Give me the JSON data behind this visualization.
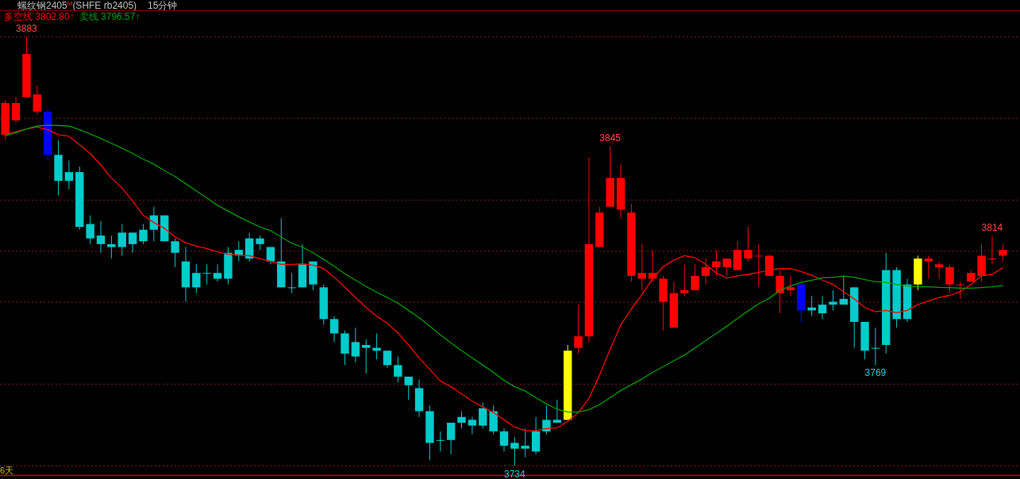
{
  "chart_data": {
    "type": "candlestick",
    "title": "螺纹钢2405$^{M}$(SHFE rb2405)",
    "subtitle": "15分钟",
    "annotations": [
      "6天"
    ],
    "legend": "top left",
    "grid": "y",
    "ylim": [
      3734,
      3883
    ],
    "yticks": [
      {
        "value": 3883,
        "label": null
      },
      {
        "value": 3854.7,
        "label": null
      },
      {
        "value": 3826.3,
        "label": null
      },
      {
        "value": 3808.6,
        "label": null
      },
      {
        "value": 3790.9,
        "label": null
      },
      {
        "value": 3762.4,
        "label": null
      },
      {
        "value": 3734,
        "label": null
      }
    ],
    "categories": [
      null,
      null,
      null,
      null,
      null,
      null,
      null,
      null,
      null,
      null,
      null,
      null,
      null,
      null,
      null,
      null,
      null,
      null,
      null,
      null,
      null,
      null,
      null,
      null,
      null,
      null,
      null,
      null,
      null,
      null,
      null,
      null,
      null,
      null,
      null,
      null,
      null,
      null,
      null,
      null,
      null,
      null,
      null,
      null,
      null,
      null,
      null,
      null,
      null,
      null,
      null,
      null,
      null,
      null,
      null,
      null,
      null,
      null,
      null,
      null,
      null,
      null,
      null,
      null,
      null,
      null,
      null,
      null,
      null,
      null,
      null,
      null,
      null,
      null,
      null,
      null,
      null,
      null,
      null,
      null,
      null,
      null,
      null,
      null,
      null,
      null,
      null,
      null,
      null,
      null,
      null,
      null,
      null,
      null,
      null
    ],
    "ohlc": [
      [
        3849,
        3861,
        3847,
        3860
      ],
      [
        3854,
        3862,
        3853,
        3860
      ],
      [
        3862,
        3883,
        3862,
        3877
      ],
      [
        3857,
        3866,
        3856,
        3863
      ],
      [
        3857,
        3858,
        3840,
        3842
      ],
      [
        3842,
        3847,
        3828,
        3833
      ],
      [
        3836,
        3840,
        3830,
        3833
      ],
      [
        3836,
        3838,
        3816,
        3817
      ],
      [
        3818,
        3821,
        3811,
        3813
      ],
      [
        3814,
        3819,
        3808,
        3811
      ],
      [
        3811,
        3814,
        3806,
        3810
      ],
      [
        3815,
        3818,
        3807,
        3810
      ],
      [
        3815,
        3815,
        3808,
        3811
      ],
      [
        3816,
        3818,
        3811,
        3812
      ],
      [
        3821,
        3824,
        3812,
        3816
      ],
      [
        3821,
        3821,
        3812,
        3812
      ],
      [
        3812,
        3813,
        3803,
        3808
      ],
      [
        3805,
        3810,
        3791,
        3796
      ],
      [
        3801,
        3804,
        3794,
        3796
      ],
      [
        3801,
        3804,
        3797,
        3801
      ],
      [
        3801,
        3804,
        3798,
        3799
      ],
      [
        3808,
        3810,
        3797,
        3799
      ],
      [
        3809,
        3812,
        3805,
        3807
      ],
      [
        3813,
        3815,
        3805,
        3806
      ],
      [
        3813,
        3814,
        3809,
        3811
      ],
      [
        3810,
        3810,
        3804,
        3805
      ],
      [
        3805,
        3820,
        3796,
        3796
      ],
      [
        3796,
        3801,
        3794,
        3796
      ],
      [
        3804,
        3811,
        3796,
        3796
      ],
      [
        3805,
        3805,
        3795,
        3797
      ],
      [
        3796,
        3797,
        3783,
        3785
      ],
      [
        3785,
        3786,
        3777,
        3780
      ],
      [
        3780,
        3781,
        3769,
        3773
      ],
      [
        3777,
        3782,
        3770,
        3772
      ],
      [
        3776,
        3778,
        3766,
        3775
      ],
      [
        3775,
        3780,
        3771,
        3774
      ],
      [
        3774,
        3774,
        3768,
        3769
      ],
      [
        3769,
        3772,
        3763,
        3765
      ],
      [
        3765,
        3765,
        3757,
        3762
      ],
      [
        3761,
        3764,
        3751,
        3753
      ],
      [
        3753,
        3755,
        3736,
        3742
      ],
      [
        3743,
        3746,
        3739,
        3743
      ],
      [
        3749,
        3749,
        3738,
        3743
      ],
      [
        3751,
        3753,
        3747,
        3749
      ],
      [
        3750,
        3751,
        3745,
        3748
      ],
      [
        3754,
        3756,
        3747,
        3748
      ],
      [
        3753,
        3755,
        3745,
        3746
      ],
      [
        3746,
        3747,
        3739,
        3741
      ],
      [
        3742,
        3744,
        3734,
        3740
      ],
      [
        3741,
        3747,
        3737,
        3740
      ],
      [
        3746,
        3751,
        3738,
        3739
      ],
      [
        3750,
        3755,
        3745,
        3746
      ],
      [
        3750,
        3757,
        3749,
        3749
      ],
      [
        3750,
        3776,
        3750,
        3774
      ],
      [
        3775,
        3790,
        3773,
        3779
      ],
      [
        3779,
        3841,
        3777,
        3811
      ],
      [
        3810,
        3824,
        3810,
        3822
      ],
      [
        3824,
        3845,
        3824,
        3834
      ],
      [
        3823,
        3839,
        3820,
        3834
      ],
      [
        3800,
        3825,
        3798,
        3822
      ],
      [
        3799,
        3811,
        3795,
        3801
      ],
      [
        3799,
        3809,
        3798,
        3801
      ],
      [
        3791,
        3800,
        3781,
        3799
      ],
      [
        3782,
        3798,
        3782,
        3794
      ],
      [
        3794,
        3804,
        3793,
        3795
      ],
      [
        3795,
        3804,
        3795,
        3800
      ],
      [
        3800,
        3806,
        3797,
        3803
      ],
      [
        3803,
        3809,
        3800,
        3805
      ],
      [
        3803,
        3806,
        3800,
        3806
      ],
      [
        3802,
        3812,
        3802,
        3809
      ],
      [
        3806,
        3817,
        3805,
        3809
      ],
      [
        3807,
        3811,
        3796,
        3807
      ],
      [
        3800,
        3807,
        3800,
        3807
      ],
      [
        3794,
        3802,
        3787,
        3800
      ],
      [
        3795,
        3800,
        3793,
        3796
      ],
      [
        3797,
        3799,
        3784,
        3788
      ],
      [
        3789,
        3793,
        3786,
        3788
      ],
      [
        3790,
        3793,
        3785,
        3787
      ],
      [
        3791,
        3795,
        3788,
        3790
      ],
      [
        3792,
        3800,
        3790,
        3790
      ],
      [
        3796,
        3796,
        3775,
        3784
      ],
      [
        3784,
        3784,
        3771,
        3774
      ],
      [
        3775,
        3782,
        3769,
        3775
      ],
      [
        3802,
        3808,
        3773,
        3776
      ],
      [
        3802,
        3803,
        3782,
        3785
      ],
      [
        3797,
        3799,
        3784,
        3785
      ],
      [
        3797,
        3807,
        3795,
        3806
      ],
      [
        3805,
        3807,
        3799,
        3806
      ],
      [
        3803,
        3805,
        3799,
        3804
      ],
      [
        3797,
        3804,
        3794,
        3803
      ],
      [
        3797,
        3798,
        3792,
        3797
      ],
      [
        3798,
        3802,
        3798,
        3801
      ],
      [
        3800,
        3811,
        3798,
        3807
      ],
      [
        3806,
        3814,
        3804,
        3806
      ],
      [
        3807,
        3811,
        3805,
        3809
      ]
    ],
    "colors": [
      "#ff0000",
      "#ff0000",
      "#ff0000",
      "#ff0000",
      "#0000ff",
      "#00cccc",
      "#00cccc",
      "#00cccc",
      "#00cccc",
      "#00cccc",
      "#00cccc",
      "#00cccc",
      "#00cccc",
      "#00cccc",
      "#00cccc",
      "#00cccc",
      "#00cccc",
      "#00cccc",
      "#00cccc",
      "#00cccc",
      "#00cccc",
      "#00cccc",
      "#00cccc",
      "#00cccc",
      "#00cccc",
      "#00cccc",
      "#00cccc",
      "#00cccc",
      "#00cccc",
      "#00cccc",
      "#00cccc",
      "#00cccc",
      "#00cccc",
      "#00cccc",
      "#00cccc",
      "#00cccc",
      "#00cccc",
      "#00cccc",
      "#00cccc",
      "#00cccc",
      "#00cccc",
      "#00cccc",
      "#00cccc",
      "#00cccc",
      "#00cccc",
      "#00cccc",
      "#00cccc",
      "#00cccc",
      "#00cccc",
      "#00cccc",
      "#00cccc",
      "#00cccc",
      "#00cccc",
      "#ffff00",
      "#ff0000",
      "#ff0000",
      "#ff0000",
      "#ff0000",
      "#ff0000",
      "#ff0000",
      "#ff0000",
      "#ff0000",
      "#ff0000",
      "#ff0000",
      "#ff0000",
      "#ff0000",
      "#ff0000",
      "#ff0000",
      "#ff0000",
      "#ff0000",
      "#ff0000",
      "#ff0000",
      "#ff0000",
      "#ff0000",
      "#ff0000",
      "#0000ff",
      "#00cccc",
      "#00cccc",
      "#00cccc",
      "#00cccc",
      "#00cccc",
      "#00cccc",
      "#00cccc",
      "#00cccc",
      "#00cccc",
      "#00cccc",
      "#ffff00",
      "#ff0000",
      "#ff0000",
      "#ff0000",
      "#ff0000",
      "#ff0000",
      "#ff0000",
      "#ff0000",
      "#ff0000"
    ],
    "value_labels": [
      null,
      null,
      "3883",
      null,
      null,
      null,
      null,
      null,
      null,
      null,
      null,
      null,
      null,
      null,
      null,
      null,
      null,
      null,
      null,
      null,
      null,
      null,
      null,
      null,
      null,
      null,
      null,
      null,
      null,
      null,
      null,
      null,
      null,
      null,
      null,
      null,
      null,
      null,
      null,
      null,
      null,
      null,
      null,
      null,
      null,
      null,
      null,
      null,
      "3734",
      null,
      null,
      null,
      null,
      null,
      null,
      null,
      null,
      "3845",
      null,
      null,
      null,
      null,
      null,
      null,
      null,
      null,
      null,
      null,
      null,
      null,
      null,
      null,
      null,
      null,
      null,
      null,
      null,
      null,
      null,
      null,
      null,
      null,
      "3769",
      null,
      null,
      null,
      null,
      null,
      null,
      null,
      null,
      null,
      null,
      "3814",
      null
    ],
    "series": [
      {
        "type": "line",
        "name": "多空线 3802.80↑",
        "color": "#ff0000",
        "values": [
          3849.0,
          3850.0,
          3851.0,
          3851.7,
          3850.7,
          3849.0,
          3848.5,
          3845.5,
          3842.5,
          3838.5,
          3834.0,
          3830.5,
          3826.0,
          3821.0,
          3818.5,
          3816.5,
          3813.5,
          3811.5,
          3810.3,
          3809.5,
          3808.3,
          3807.5,
          3807.2,
          3807.0,
          3806.0,
          3805.0,
          3804.0,
          3804.0,
          3804.2,
          3803.7,
          3802.5,
          3799.5,
          3796.0,
          3792.5,
          3789.0,
          3786.0,
          3783.5,
          3780.2,
          3776.0,
          3771.5,
          3767.5,
          3763.5,
          3761.5,
          3759.0,
          3756.5,
          3754.5,
          3752.5,
          3750.0,
          3747.5,
          3746.2,
          3746.2,
          3747.0,
          3747.2,
          3749.5,
          3752.5,
          3757.5,
          3765.5,
          3774.5,
          3783.0,
          3788.5,
          3793.5,
          3799.0,
          3803.2,
          3805.5,
          3807.0,
          3806.3,
          3804.0,
          3801.0,
          3799.2,
          3800.0,
          3800.5,
          3801.2,
          3802.0,
          3802.5,
          3802.5,
          3801.5,
          3800.2,
          3798.5,
          3797.0,
          3794.5,
          3792.0,
          3789.0,
          3787.5,
          3788.0,
          3787.2,
          3788.0,
          3790.0,
          3791.3,
          3792.5,
          3793.2,
          3794.5,
          3797.0,
          3800.0,
          3800.5,
          3802.8
        ]
      },
      {
        "type": "line",
        "name": "卖线 3796.57↑",
        "color": "#00a000",
        "values": [
          3848.7,
          3849.7,
          3851.0,
          3852.0,
          3852.3,
          3852.2,
          3852.0,
          3850.7,
          3849.3,
          3847.7,
          3846.0,
          3844.3,
          3842.5,
          3840.5,
          3838.8,
          3836.5,
          3834.5,
          3832.0,
          3829.5,
          3827.0,
          3824.5,
          3822.5,
          3820.5,
          3818.7,
          3817.0,
          3815.7,
          3813.5,
          3811.3,
          3810.0,
          3808.0,
          3805.7,
          3803.3,
          3800.7,
          3798.5,
          3796.3,
          3794.3,
          3792.5,
          3790.5,
          3788.0,
          3785.5,
          3782.5,
          3779.5,
          3776.7,
          3774.0,
          3771.5,
          3769.0,
          3766.5,
          3763.7,
          3761.5,
          3760.0,
          3757.7,
          3755.5,
          3753.7,
          3752.7,
          3752.7,
          3753.5,
          3755.3,
          3757.7,
          3760.2,
          3762.2,
          3764.2,
          3766.5,
          3768.5,
          3770.5,
          3772.5,
          3775.0,
          3777.5,
          3780.0,
          3782.5,
          3785.2,
          3787.8,
          3790.3,
          3792.2,
          3795.0,
          3796.5,
          3797.7,
          3798.5,
          3799.3,
          3799.5,
          3799.9,
          3799.5,
          3798.7,
          3798.0,
          3797.7,
          3797.0,
          3796.5,
          3796.2,
          3796.2,
          3796.0,
          3795.9,
          3795.7,
          3795.7,
          3795.9,
          3796.2,
          3796.6
        ]
      }
    ]
  }
}
